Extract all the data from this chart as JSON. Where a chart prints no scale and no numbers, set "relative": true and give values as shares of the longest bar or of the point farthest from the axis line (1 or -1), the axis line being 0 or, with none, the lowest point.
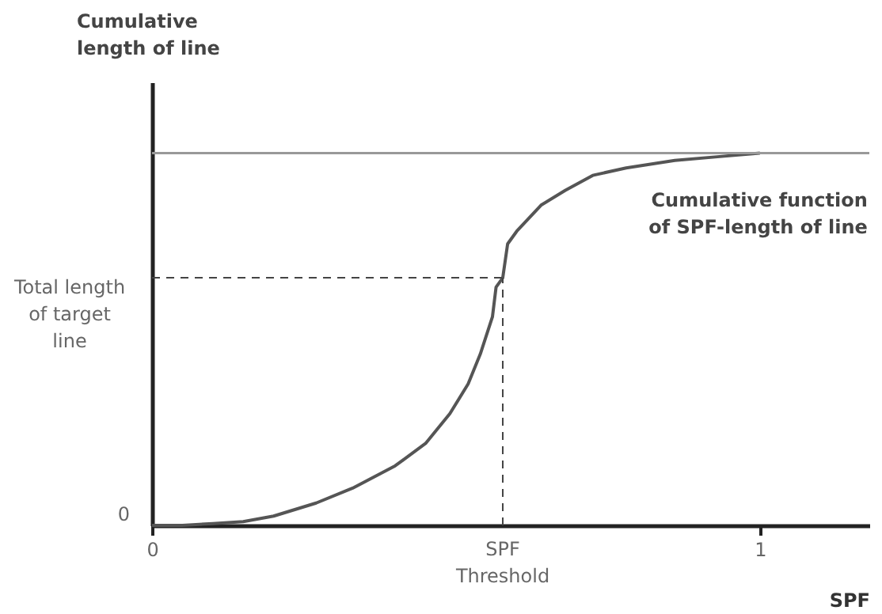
{
  "chart_data": {
    "type": "line",
    "relative": true,
    "xlabel": "SPF",
    "ylabel": "Cumulative length of line",
    "x": [
      0,
      0.05,
      0.1,
      0.15,
      0.2,
      0.27,
      0.33,
      0.4,
      0.45,
      0.49,
      0.52,
      0.54,
      0.56,
      0.566,
      0.577,
      0.585,
      0.6,
      0.64,
      0.68,
      0.725,
      0.78,
      0.86,
      0.93,
      1.0
    ],
    "series": [
      {
        "name": "Cumulative function of SPF-length of line",
        "color": "#555555",
        "values": [
          0,
          0,
          0.005,
          0.01,
          0.025,
          0.06,
          0.1,
          0.16,
          0.22,
          0.3,
          0.38,
          0.46,
          0.56,
          0.64,
          0.665,
          0.756,
          0.79,
          0.86,
          0.9,
          0.94,
          0.96,
          0.98,
          0.99,
          1.0
        ]
      }
    ],
    "xlim": [
      0,
      1.18
    ],
    "xticks": [
      0,
      1
    ],
    "ref_lines": [
      {
        "axis": "y",
        "value": 1,
        "label": null,
        "color": "#999999",
        "line_style": "solid"
      },
      {
        "axis": "y",
        "value": 0.665,
        "label": "Total length of target line",
        "color": "#444444",
        "line_style": "dashed"
      },
      {
        "axis": "x",
        "value": 0.577,
        "label": "SPF Threshold",
        "color": "#444444",
        "line_style": "dashed"
      }
    ],
    "annotations": [
      "0"
    ],
    "grid": false,
    "marker": "none",
    "line_style": "solid"
  }
}
